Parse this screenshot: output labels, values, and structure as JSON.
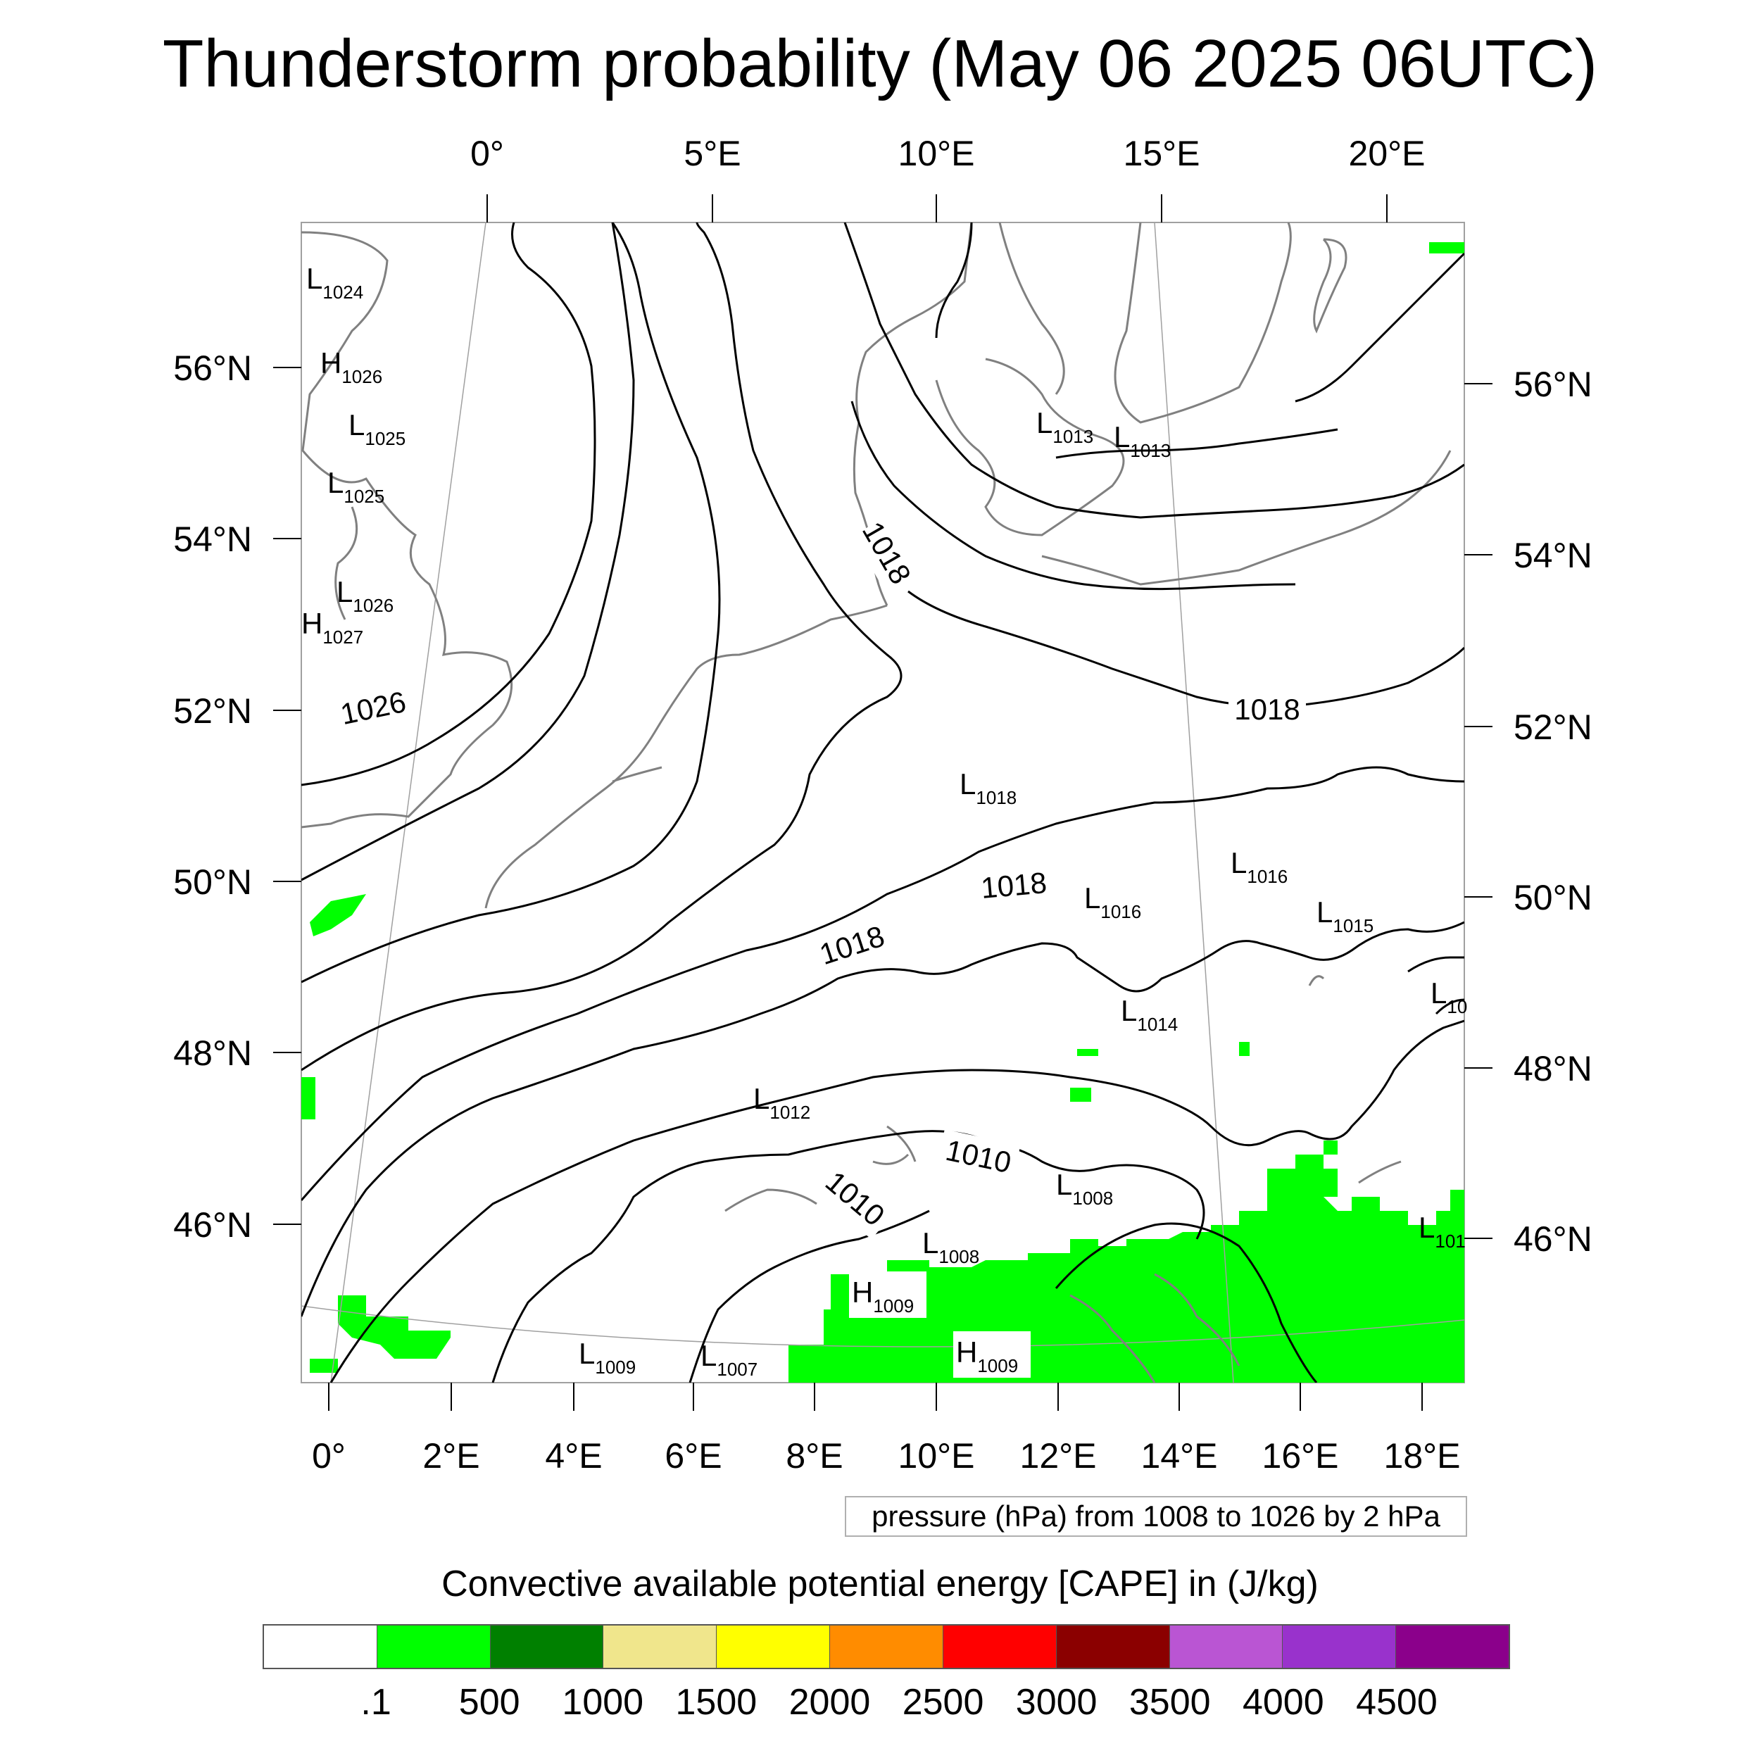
{
  "title": "Thunderstorm probability (May 06 2025 06UTC)",
  "top_lon_labels": [
    "0°",
    "5°E",
    "10°E",
    "15°E",
    "20°E"
  ],
  "bottom_lon_labels": [
    "0°",
    "2°E",
    "4°E",
    "6°E",
    "8°E",
    "10°E",
    "12°E",
    "14°E",
    "16°E",
    "18°E"
  ],
  "left_lat_labels": [
    "56°N",
    "54°N",
    "52°N",
    "50°N",
    "48°N",
    "46°N"
  ],
  "right_lat_labels": [
    "56°N",
    "54°N",
    "52°N",
    "50°N",
    "48°N",
    "46°N"
  ],
  "pressure_centers": [
    {
      "type": "L",
      "value": "1024"
    },
    {
      "type": "H",
      "value": "1026"
    },
    {
      "type": "L",
      "value": "1025"
    },
    {
      "type": "L",
      "value": "1025"
    },
    {
      "type": "L",
      "value": "1026"
    },
    {
      "type": "H",
      "value": "1027"
    },
    {
      "type": "L",
      "value": "1013"
    },
    {
      "type": "L",
      "value": "1013"
    },
    {
      "type": "L",
      "value": "1018"
    },
    {
      "type": "L",
      "value": "1016"
    },
    {
      "type": "L",
      "value": "1016"
    },
    {
      "type": "L",
      "value": "1015"
    },
    {
      "type": "L",
      "value": "1014"
    },
    {
      "type": "L",
      "value": "10"
    },
    {
      "type": "L",
      "value": "1012"
    },
    {
      "type": "L",
      "value": "1008"
    },
    {
      "type": "L",
      "value": "1008"
    },
    {
      "type": "H",
      "value": "1009"
    },
    {
      "type": "H",
      "value": "1009"
    },
    {
      "type": "L",
      "value": "1009"
    },
    {
      "type": "L",
      "value": "1007"
    },
    {
      "type": "L",
      "value": "101"
    }
  ],
  "isobar_labels": [
    "1018",
    "1026",
    "1018",
    "1018",
    "1018",
    "1010",
    "1010"
  ],
  "contour_info": "pressure (hPa) from 1008 to 1026 by 2 hPa",
  "colorbar": {
    "title": "Convective available potential energy [CAPE] in (J/kg)",
    "colors": [
      "#ffffff",
      "#00ff00",
      "#008000",
      "#f0e68c",
      "#ffff00",
      "#ff8c00",
      "#ff0000",
      "#8b0000",
      "#ba55d3",
      "#9932cc",
      "#8b008b"
    ],
    "labels": [
      ".1",
      "500",
      "1000",
      "1500",
      "2000",
      "2500",
      "3000",
      "3500",
      "4000",
      "4500"
    ]
  },
  "colors": {
    "cape_green": "#00ff00",
    "isobar": "#000000",
    "coastline": "#808080",
    "graticule": "#a0a0a0"
  }
}
